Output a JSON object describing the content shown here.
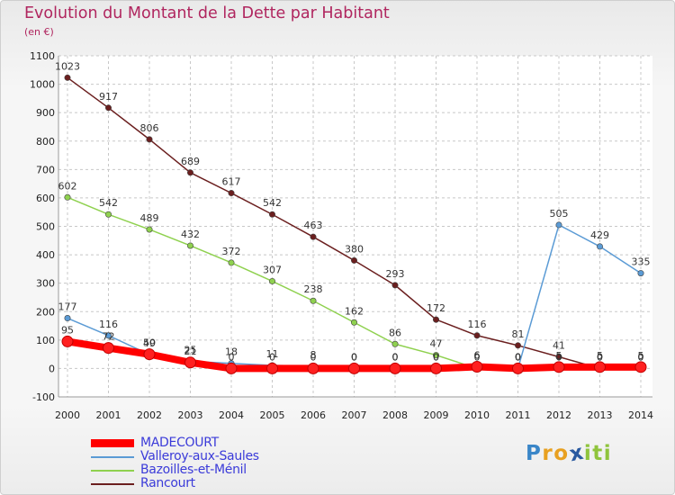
{
  "chart_data": {
    "type": "line",
    "title": "Evolution du Montant de la Dette par Habitant",
    "unit_label": "(en €)",
    "xlabel": "",
    "ylabel": "",
    "ylim": [
      -100,
      1100
    ],
    "y_ticks": [
      "-100",
      "0",
      "100",
      "200",
      "300",
      "400",
      "500",
      "600",
      "700",
      "800",
      "900",
      "1000",
      "1100"
    ],
    "categories": [
      "2000",
      "2001",
      "2002",
      "2003",
      "2004",
      "2005",
      "2006",
      "2007",
      "2008",
      "2009",
      "2010",
      "2011",
      "2012",
      "2013",
      "2014"
    ],
    "series": [
      {
        "name": "MADECOURT",
        "color": "#ff0000",
        "values": [
          95,
          72,
          50,
          21,
          0,
          0,
          0,
          0,
          0,
          0,
          6,
          0,
          5,
          5,
          5
        ],
        "labels": [
          "95",
          "72",
          "50",
          "21",
          "0",
          "0",
          "0",
          "0",
          "0",
          "0",
          "6",
          "0",
          "5",
          "5",
          "5"
        ]
      },
      {
        "name": "Valleroy-aux-Saules",
        "color": "#5b9bd5",
        "values": [
          177,
          116,
          49,
          25,
          18,
          11,
          8,
          0,
          0,
          0,
          6,
          0,
          505,
          429,
          335
        ],
        "labels": [
          "177",
          "116",
          "49",
          "25",
          "18",
          "11",
          "8",
          "0",
          "0",
          "0",
          "6",
          "0",
          "505",
          "429",
          "335"
        ]
      },
      {
        "name": "Bazoilles-et-Ménil",
        "color": "#8fd14f",
        "values": [
          602,
          542,
          489,
          432,
          372,
          307,
          238,
          162,
          86,
          47,
          0,
          0,
          0,
          0,
          0
        ],
        "labels": [
          "602",
          "542",
          "489",
          "432",
          "372",
          "307",
          "238",
          "162",
          "86",
          "47",
          "0",
          "0",
          "0",
          "0",
          "0"
        ]
      },
      {
        "name": "Rancourt",
        "color": "#6b1f1f",
        "values": [
          1023,
          917,
          806,
          689,
          617,
          542,
          463,
          380,
          293,
          172,
          116,
          81,
          41,
          0,
          0
        ],
        "labels": [
          "1023",
          "917",
          "806",
          "689",
          "617",
          "542",
          "463",
          "380",
          "293",
          "172",
          "116",
          "81",
          "41",
          "0",
          "0"
        ]
      }
    ]
  },
  "logo": {
    "letters": [
      "P",
      "r",
      "o",
      "x",
      "i",
      "t",
      "i"
    ],
    "colors": [
      "#3a86c8",
      "#e8a020",
      "#e8a020",
      "#2a5aa0",
      "#8fc43c",
      "#8fc43c",
      "#8fc43c"
    ]
  }
}
